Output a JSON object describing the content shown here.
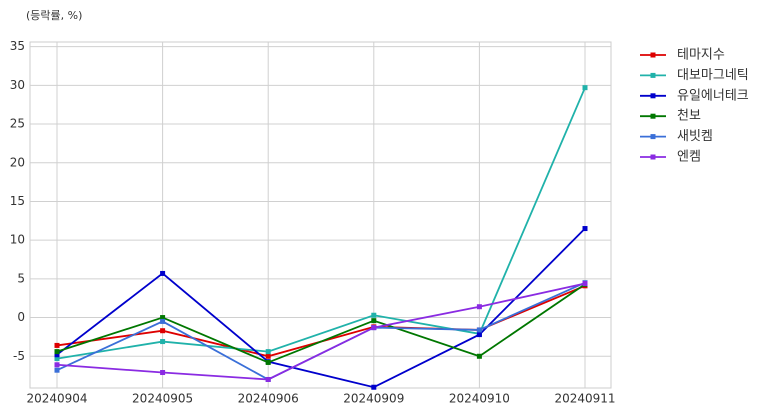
{
  "chart_data": {
    "type": "line",
    "annotation": "(등락률, %)",
    "categories": [
      "20240904",
      "20240905",
      "20240906",
      "20240909",
      "20240910",
      "20240911"
    ],
    "series": [
      {
        "name": "테마지수",
        "color": "#dd0000",
        "values": [
          -3.6,
          -1.7,
          -5.0,
          -1.2,
          -1.6,
          4.1
        ]
      },
      {
        "name": "대보마그네틱",
        "color": "#20b2aa",
        "values": [
          -5.3,
          -3.1,
          -4.4,
          0.3,
          -2.1,
          29.7
        ]
      },
      {
        "name": "유일에너테크",
        "color": "#0000cc",
        "values": [
          -4.8,
          5.7,
          -5.7,
          -9.0,
          -2.2,
          11.5
        ]
      },
      {
        "name": "천보",
        "color": "#007700",
        "values": [
          -4.4,
          0,
          -5.8,
          -0.4,
          -5.0,
          4.3
        ]
      },
      {
        "name": "새빗켐",
        "color": "#3a6fd8",
        "values": [
          -6.8,
          -0.5,
          -8.0,
          -1.3,
          -1.6,
          4.5
        ]
      },
      {
        "name": "엔켐",
        "color": "#8a2be2",
        "values": [
          -6.1,
          -7.1,
          -8.0,
          -1.3,
          1.4,
          4.4
        ]
      }
    ],
    "ylim": [
      -9.1,
      35.6
    ],
    "yticks": [
      -5,
      0,
      5,
      10,
      15,
      20,
      25,
      30,
      35
    ],
    "grid": true,
    "legend": "outside-right"
  }
}
